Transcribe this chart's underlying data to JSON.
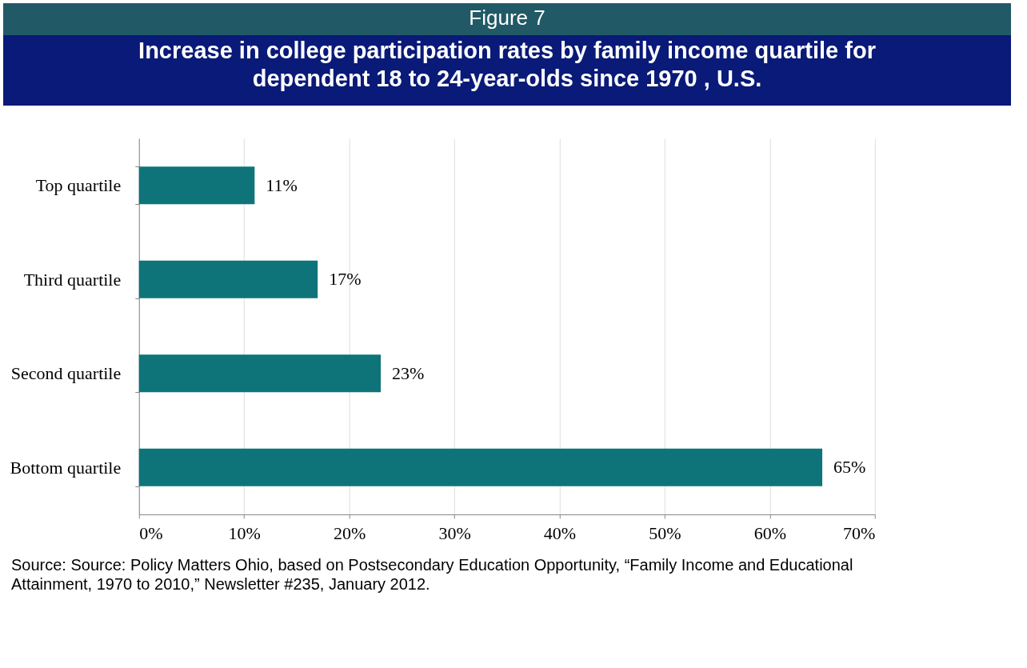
{
  "chart_data": {
    "type": "bar",
    "orientation": "horizontal",
    "subtitle": "Figure 7",
    "title": "Increase in college participation rates by family income quartile for dependent 18 to 24-year-olds since 1970 , U.S.",
    "categories": [
      "Top quartile",
      "Third quartile",
      "Second quartile",
      "Bottom quartile"
    ],
    "values": [
      11,
      17,
      23,
      65
    ],
    "color": "#0e7479",
    "value_labels": [
      "11%",
      "17%",
      "23%",
      "65%"
    ],
    "xlim": [
      0,
      70
    ],
    "xticks": [
      {
        "value": 0,
        "label": "0%"
      },
      {
        "value": 10,
        "label": "10%"
      },
      {
        "value": 20,
        "label": "20%"
      },
      {
        "value": 30,
        "label": "30%"
      },
      {
        "value": 40,
        "label": "40%"
      },
      {
        "value": 50,
        "label": "50%"
      },
      {
        "value": 60,
        "label": "60%"
      },
      {
        "value": 70,
        "label": "70%"
      }
    ],
    "grid": "x",
    "annotations": [
      "Source:  Source:  Policy Matters Ohio, based on Postsecondary Education Opportunity, “Family Income and Educational Attainment, 1970 to 2010,” Newsletter #235, January 2012."
    ]
  }
}
